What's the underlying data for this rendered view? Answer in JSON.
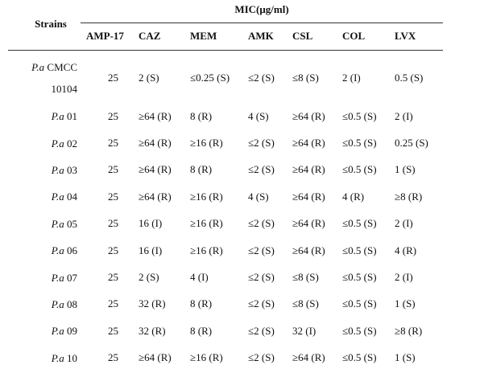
{
  "table": {
    "header": {
      "strains": "Strains",
      "group": "MIC(μg/ml)",
      "columns": [
        "AMP-17",
        "CAZ",
        "MEM",
        "AMK",
        "CSL",
        "COL",
        "LVX"
      ]
    },
    "rows": [
      {
        "strain": {
          "species": "P.a",
          "id": "CMCC 10104"
        },
        "values": [
          "25",
          "2 (S)",
          "≤0.25 (S)",
          "≤2 (S)",
          "≤8 (S)",
          "2 (I)",
          "0.5 (S)"
        ]
      },
      {
        "strain": {
          "species": "P.a",
          "id": "01"
        },
        "values": [
          "25",
          "≥64 (R)",
          "8 (R)",
          "4 (S)",
          "≥64 (R)",
          "≤0.5 (S)",
          "2 (I)"
        ]
      },
      {
        "strain": {
          "species": "P.a",
          "id": "02"
        },
        "values": [
          "25",
          "≥64 (R)",
          "≥16 (R)",
          "≤2 (S)",
          "≥64 (R)",
          "≤0.5 (S)",
          "0.25 (S)"
        ]
      },
      {
        "strain": {
          "species": "P.a",
          "id": "03"
        },
        "values": [
          "25",
          "≥64 (R)",
          "8 (R)",
          "≤2 (S)",
          "≥64 (R)",
          "≤0.5 (S)",
          "1 (S)"
        ]
      },
      {
        "strain": {
          "species": "P.a",
          "id": "04"
        },
        "values": [
          "25",
          "≥64 (R)",
          "≥16 (R)",
          "4 (S)",
          "≥64 (R)",
          "4 (R)",
          "≥8 (R)"
        ]
      },
      {
        "strain": {
          "species": "P.a",
          "id": "05"
        },
        "values": [
          "25",
          "16 (I)",
          "≥16 (R)",
          "≤2 (S)",
          "≥64 (R)",
          "≤0.5 (S)",
          "2 (I)"
        ]
      },
      {
        "strain": {
          "species": "P.a",
          "id": "06"
        },
        "values": [
          "25",
          "16 (I)",
          "≥16 (R)",
          "≤2 (S)",
          "≥64 (R)",
          "≤0.5 (S)",
          "4 (R)"
        ]
      },
      {
        "strain": {
          "species": "P.a",
          "id": "07"
        },
        "values": [
          "25",
          "2 (S)",
          "4 (I)",
          "≤2 (S)",
          "≤8 (S)",
          "≤0.5 (S)",
          "2 (I)"
        ]
      },
      {
        "strain": {
          "species": "P.a",
          "id": "08"
        },
        "values": [
          "25",
          "32 (R)",
          "8 (R)",
          "≤2 (S)",
          "≤8 (S)",
          "≤0.5 (S)",
          "1 (S)"
        ]
      },
      {
        "strain": {
          "species": "P.a",
          "id": "09"
        },
        "values": [
          "25",
          "32 (R)",
          "8 (R)",
          "≤2 (S)",
          "32 (I)",
          "≤0.5 (S)",
          "≥8 (R)"
        ]
      },
      {
        "strain": {
          "species": "P.a",
          "id": "10"
        },
        "values": [
          "25",
          "≥64 (R)",
          "≥16 (R)",
          "≤2 (S)",
          "≥64 (R)",
          "≤0.5 (S)",
          "1 (S)"
        ]
      }
    ]
  }
}
